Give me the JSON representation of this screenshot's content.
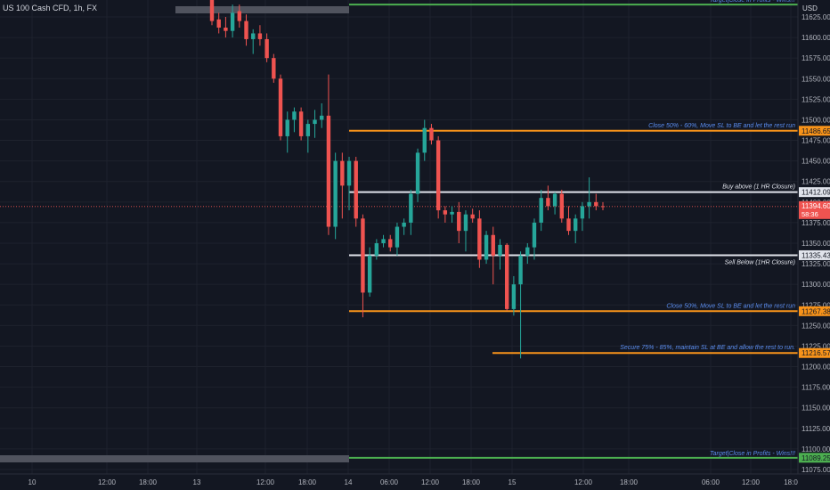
{
  "header": {
    "title": "US 100 Cash CFD, 1h, FX",
    "currency": "USD"
  },
  "colors": {
    "background": "#131722",
    "grid": "#1e222d",
    "up": "#26a69a",
    "down": "#ef5350",
    "orange": "#f7931a",
    "white": "#e0e3eb",
    "green": "#4caf50",
    "blue_text": "#5b8def",
    "axis_text": "#b2b5be",
    "gray_band": "#50535e"
  },
  "chart_data": {
    "type": "candlestick",
    "title": "US 100 Cash CFD, 1h, FX",
    "y_axis": {
      "range": [
        11067,
        11648
      ],
      "tick_labels": [
        "11625.00",
        "11600.00",
        "11575.00",
        "11550.00",
        "11525.00",
        "11500.00",
        "11475.00",
        "11450.00",
        "11425.00",
        "11400.00",
        "11375.00",
        "11350.00",
        "11325.00",
        "11300.00",
        "11275.00",
        "11250.00",
        "11225.00",
        "11200.00",
        "11175.00",
        "11150.00",
        "11125.00",
        "11100.00",
        "11075.00"
      ]
    },
    "x_axis": {
      "tick_labels": [
        "10",
        "12:00",
        "18:00",
        "13",
        "12:00",
        "18:00",
        "14",
        "06:00",
        "12:00",
        "18:00",
        "15",
        "12:00",
        "18:00",
        "06:00",
        "12:00",
        "18:0"
      ]
    },
    "candles_ohlc": [
      [
        11646,
        11650,
        11615,
        11620
      ],
      [
        11622,
        11630,
        11605,
        11612
      ],
      [
        11612,
        11625,
        11600,
        11608
      ],
      [
        11608,
        11640,
        11600,
        11630
      ],
      [
        11632,
        11640,
        11612,
        11620
      ],
      [
        11620,
        11628,
        11590,
        11598
      ],
      [
        11598,
        11610,
        11580,
        11605
      ],
      [
        11605,
        11615,
        11590,
        11598
      ],
      [
        11598,
        11605,
        11570,
        11575
      ],
      [
        11575,
        11580,
        11545,
        11550
      ],
      [
        11550,
        11555,
        11475,
        11480
      ],
      [
        11480,
        11510,
        11460,
        11500
      ],
      [
        11500,
        11515,
        11485,
        11510
      ],
      [
        11510,
        11515,
        11475,
        11480
      ],
      [
        11480,
        11500,
        11460,
        11495
      ],
      [
        11495,
        11512,
        11478,
        11500
      ],
      [
        11500,
        11520,
        11490,
        11505
      ],
      [
        11505,
        11555,
        11360,
        11370
      ],
      [
        11370,
        11460,
        11355,
        11450
      ],
      [
        11450,
        11460,
        11380,
        11420
      ],
      [
        11420,
        11455,
        11390,
        11450
      ],
      [
        11450,
        11455,
        11370,
        11380
      ],
      [
        11380,
        11385,
        11260,
        11290
      ],
      [
        11290,
        11345,
        11285,
        11335
      ],
      [
        11335,
        11355,
        11330,
        11350
      ],
      [
        11350,
        11360,
        11345,
        11355
      ],
      [
        11355,
        11360,
        11340,
        11345
      ],
      [
        11345,
        11375,
        11335,
        11370
      ],
      [
        11370,
        11380,
        11360,
        11375
      ],
      [
        11375,
        11415,
        11360,
        11410
      ],
      [
        11410,
        11465,
        11400,
        11460
      ],
      [
        11460,
        11500,
        11450,
        11490
      ],
      [
        11490,
        11495,
        11470,
        11475
      ],
      [
        11475,
        11480,
        11380,
        11390
      ],
      [
        11390,
        11395,
        11375,
        11385
      ],
      [
        11385,
        11395,
        11375,
        11388
      ],
      [
        11388,
        11400,
        11350,
        11365
      ],
      [
        11365,
        11390,
        11340,
        11385
      ],
      [
        11385,
        11392,
        11375,
        11380
      ],
      [
        11380,
        11390,
        11320,
        11330
      ],
      [
        11330,
        11365,
        11325,
        11360
      ],
      [
        11360,
        11370,
        11300,
        11335
      ],
      [
        11335,
        11355,
        11318,
        11348
      ],
      [
        11348,
        11350,
        11268,
        11270
      ],
      [
        11270,
        11310,
        11262,
        11300
      ],
      [
        11300,
        11340,
        11210,
        11335
      ],
      [
        11335,
        11350,
        11325,
        11345
      ],
      [
        11345,
        11380,
        11330,
        11375
      ],
      [
        11375,
        11415,
        11365,
        11405
      ],
      [
        11405,
        11420,
        11390,
        11395
      ],
      [
        11395,
        11412,
        11385,
        11410
      ],
      [
        11410,
        11415,
        11375,
        11380
      ],
      [
        11380,
        11395,
        11360,
        11365
      ],
      [
        11365,
        11385,
        11350,
        11380
      ],
      [
        11380,
        11400,
        11365,
        11395
      ],
      [
        11395,
        11430,
        11380,
        11400
      ],
      [
        11400,
        11410,
        11390,
        11395
      ],
      [
        11395,
        11400,
        11390,
        11394
      ]
    ],
    "levels": [
      {
        "price": 11640,
        "color_key": "green",
        "label": "Target|Close in Profits - Wins!!!",
        "tag": ""
      },
      {
        "price": 11486.65,
        "color_key": "orange",
        "label": "Close 50% - 60%, Move SL to BE and let the rest run",
        "tag": "11486.65"
      },
      {
        "price": 11412.09,
        "color_key": "white",
        "label": "Buy above (1 HR Closure)",
        "tag": "11412.09"
      },
      {
        "price": 11335.43,
        "color_key": "white",
        "label": "Sell Below (1HR Closure)",
        "tag": "11335.43"
      },
      {
        "price": 11267.38,
        "color_key": "orange",
        "label": "Close 50%, Move SL to BE and let the rest run",
        "tag": "11267.38"
      },
      {
        "price": 11216.57,
        "color_key": "orange",
        "label": "Secure 75% - 85%, maintain SL at BE and allow the rest to run.",
        "tag": "11216.57"
      },
      {
        "price": 11089.25,
        "color_key": "green",
        "label": "Target|Close in Profits - Wins!!!",
        "tag": "11089.25"
      }
    ],
    "current_price": {
      "value": 11394.6,
      "tag": "11394.60",
      "countdown": "58:36"
    }
  }
}
